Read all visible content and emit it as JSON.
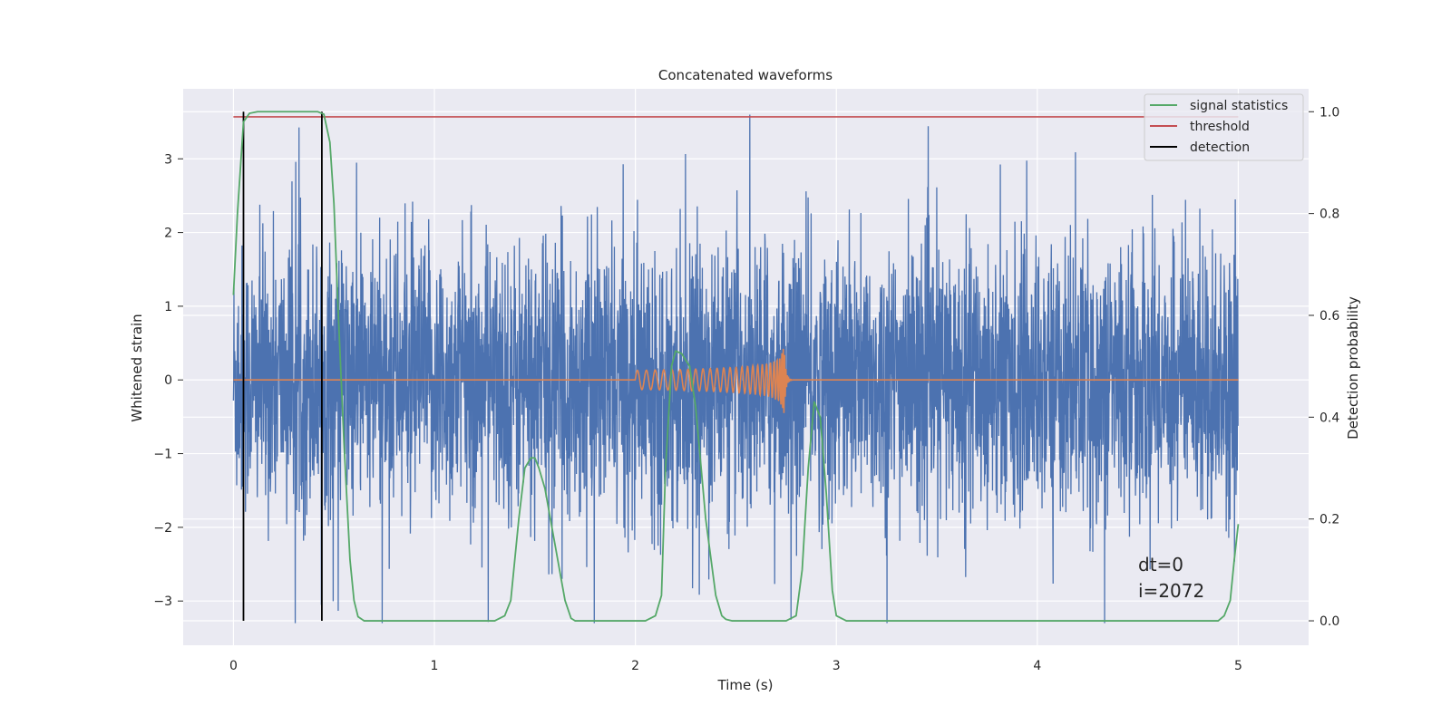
{
  "chart_data": {
    "type": "line",
    "title": "Concatenated waveforms",
    "xlabel": "Time (s)",
    "ylabel_left": "Whitened strain",
    "ylabel_right": "Detection probability",
    "xlim": [
      -0.25,
      5.35
    ],
    "ylim_left": [
      -3.6,
      3.95
    ],
    "ylim_right": [
      -0.048,
      1.045
    ],
    "xticks": [
      0,
      1,
      2,
      3,
      4,
      5
    ],
    "yticks_left": [
      -3,
      -2,
      -1,
      0,
      1,
      2,
      3
    ],
    "yticks_left_labels": [
      "−3",
      "−2",
      "−1",
      "0",
      "1",
      "2",
      "3"
    ],
    "yticks_right": [
      0.0,
      0.2,
      0.4,
      0.6,
      0.8,
      1.0
    ],
    "yticks_right_labels": [
      "0.0",
      "0.2",
      "0.4",
      "0.6",
      "0.8",
      "1.0"
    ],
    "grid": true,
    "legend_position": "top-right",
    "legend": [
      {
        "label": "signal statistics",
        "color": "#55a868"
      },
      {
        "label": "threshold",
        "color": "#c44e52"
      },
      {
        "label": "detection",
        "color": "#000000"
      }
    ],
    "series": [
      {
        "name": "strain",
        "axis": "left",
        "color": "#4c72b0",
        "description_noise": {
          "x_range": [
            0,
            5
          ],
          "std": 0.9,
          "range": [
            -3.3,
            3.6
          ]
        }
      },
      {
        "name": "chirp",
        "axis": "left",
        "color": "#dd8452",
        "x_range": [
          0,
          5
        ],
        "chirp_start": 2.0,
        "chirp_peak": 2.74,
        "peak_amplitude": 1.7
      },
      {
        "name": "signal statistics",
        "axis": "right",
        "color": "#55a868",
        "x": [
          0,
          0.02,
          0.05,
          0.08,
          0.12,
          0.2,
          0.3,
          0.42,
          0.45,
          0.48,
          0.5,
          0.52,
          0.55,
          0.58,
          0.6,
          0.62,
          0.65,
          0.7,
          1.3,
          1.35,
          1.38,
          1.42,
          1.45,
          1.48,
          1.5,
          1.52,
          1.55,
          1.6,
          1.65,
          1.68,
          1.7,
          1.75,
          2.05,
          2.1,
          2.13,
          2.15,
          2.18,
          2.2,
          2.23,
          2.27,
          2.3,
          2.35,
          2.4,
          2.43,
          2.45,
          2.48,
          2.5,
          2.55,
          2.6,
          2.75,
          2.8,
          2.83,
          2.86,
          2.89,
          2.92,
          2.95,
          2.98,
          3.0,
          3.05,
          3.1,
          4.9,
          4.93,
          4.96,
          4.98,
          5.0
        ],
        "y": [
          0.64,
          0.8,
          0.98,
          0.997,
          1.0,
          1.0,
          1.0,
          1.0,
          0.995,
          0.94,
          0.82,
          0.62,
          0.35,
          0.12,
          0.04,
          0.008,
          0.0,
          0.0,
          0.0,
          0.01,
          0.04,
          0.2,
          0.3,
          0.32,
          0.32,
          0.3,
          0.26,
          0.15,
          0.04,
          0.005,
          0.0,
          0.0,
          0.0,
          0.01,
          0.05,
          0.3,
          0.5,
          0.53,
          0.525,
          0.5,
          0.42,
          0.2,
          0.05,
          0.01,
          0.003,
          0.0,
          0.0,
          0.0,
          0.0,
          0.0,
          0.01,
          0.1,
          0.3,
          0.43,
          0.4,
          0.25,
          0.06,
          0.01,
          0.0,
          0.0,
          0.0,
          0.01,
          0.04,
          0.12,
          0.19
        ]
      },
      {
        "name": "threshold",
        "axis": "right",
        "color": "#c44e52",
        "x": [
          0,
          5
        ],
        "y": [
          0.99,
          0.99
        ]
      }
    ],
    "detections": {
      "color": "#000000",
      "x": [
        0.05,
        0.44
      ]
    },
    "annotations": [
      "dt=0",
      "i=2072"
    ]
  }
}
